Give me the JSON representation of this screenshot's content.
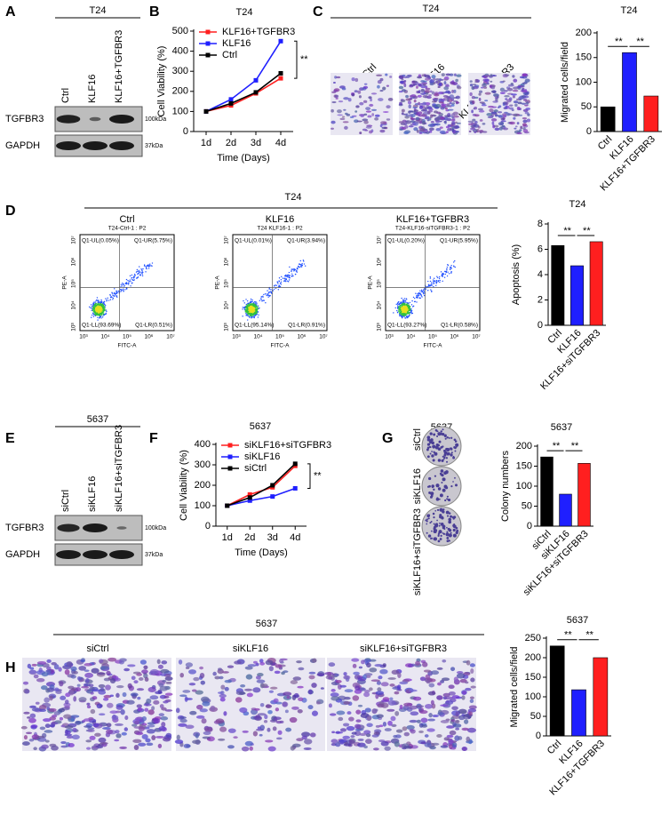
{
  "chart_data": [
    {
      "type": "line",
      "title": "T24",
      "categories": [
        "1d",
        "2d",
        "3d",
        "4d"
      ],
      "series": [
        {
          "name": "KLF16+TGFBR3",
          "color": "#ff1f1f",
          "values": [
            100,
            130,
            190,
            265
          ]
        },
        {
          "name": "KLF16",
          "color": "#1f1fff",
          "values": [
            100,
            160,
            255,
            450
          ]
        },
        {
          "name": "Ctrl",
          "color": "#000000",
          "values": [
            100,
            140,
            195,
            290
          ]
        }
      ],
      "ylim": [
        0,
        500
      ],
      "yticks": [
        0,
        100,
        200,
        300,
        400,
        500
      ],
      "y_label": "Cell Viability (%)",
      "x_label": "Time (Days)",
      "annotations": [
        "**"
      ]
    },
    {
      "type": "bar",
      "title": "T24",
      "categories": [
        "Ctrl",
        "KLF16",
        "KLF16+TGFBR3"
      ],
      "values": [
        50,
        160,
        72
      ],
      "colors": [
        "#000000",
        "#1f1fff",
        "#ff1f1f"
      ],
      "ylim": [
        0,
        200
      ],
      "yticks": [
        0,
        50,
        100,
        150,
        200
      ],
      "y_label": "Migrated cells/field",
      "annotations": [
        "**",
        "**"
      ]
    },
    {
      "type": "bar",
      "title": "T24",
      "categories": [
        "Ctrl",
        "KLF16",
        "KLF16+siTGFBR3"
      ],
      "values": [
        6.3,
        4.7,
        6.6
      ],
      "colors": [
        "#000000",
        "#1f1fff",
        "#ff1f1f"
      ],
      "ylim": [
        0,
        8
      ],
      "yticks": [
        0,
        2,
        4,
        6,
        8
      ],
      "y_label": "Apoptosis (%)",
      "annotations": [
        "**",
        "**"
      ]
    },
    {
      "type": "line",
      "title": "5637",
      "categories": [
        "1d",
        "2d",
        "3d",
        "4d"
      ],
      "series": [
        {
          "name": "siKLF16+siTGFBR3",
          "color": "#ff1f1f",
          "values": [
            100,
            155,
            190,
            295
          ]
        },
        {
          "name": "siKLF16",
          "color": "#1f1fff",
          "values": [
            100,
            125,
            145,
            185
          ]
        },
        {
          "name": "siCtrl",
          "color": "#000000",
          "values": [
            100,
            140,
            200,
            305
          ]
        }
      ],
      "ylim": [
        0,
        400
      ],
      "yticks": [
        0,
        100,
        200,
        300,
        400
      ],
      "y_label": "Cell Viability (%)",
      "x_label": "Time (Days)",
      "annotations": [
        "**"
      ]
    },
    {
      "type": "bar",
      "title": "5637",
      "categories": [
        "siCtrl",
        "siKLF16",
        "siKLF16+siTGFBR3"
      ],
      "values": [
        173,
        80,
        157
      ],
      "colors": [
        "#000000",
        "#1f1fff",
        "#ff1f1f"
      ],
      "ylim": [
        0,
        200
      ],
      "yticks": [
        0,
        50,
        100,
        150,
        200
      ],
      "y_label": "Colony numbers",
      "annotations": [
        "**",
        "**"
      ]
    },
    {
      "type": "bar",
      "title": "5637",
      "categories": [
        "Ctrl",
        "KLF16",
        "KLF16+TGFBR3"
      ],
      "values": [
        230,
        118,
        200
      ],
      "colors": [
        "#000000",
        "#1f1fff",
        "#ff1f1f"
      ],
      "ylim": [
        0,
        250
      ],
      "yticks": [
        0,
        50,
        100,
        150,
        200,
        250
      ],
      "y_label": "Migrated cells/field",
      "annotations": [
        "**",
        "**"
      ]
    }
  ],
  "figure": {
    "panel_labels": [
      "A",
      "B",
      "C",
      "D",
      "E",
      "F",
      "G",
      "H"
    ],
    "blot_A": {
      "cell_line": "T24",
      "lanes": [
        "Ctrl",
        "KLF16",
        "KLF16+TGFBR3"
      ],
      "rows": [
        "TGFBR3",
        "GAPDH"
      ],
      "sizes": [
        "100kDa",
        "37kDa"
      ]
    },
    "blot_E": {
      "cell_line": "5637",
      "lanes": [
        "siCtrl",
        "siKLF16",
        "siKLF16+siTGFBR3"
      ],
      "rows": [
        "TGFBR3",
        "GAPDH"
      ],
      "sizes": [
        "100kDa",
        "37kDa"
      ]
    },
    "migration_C": {
      "cell_line": "T24",
      "groups": [
        "Ctrl",
        "KLF16",
        "KLF16+TGFBR3"
      ]
    },
    "flow_D": {
      "cell_line": "T24",
      "y_label": "PE-A",
      "x_label": "FITC-A",
      "ticks": [
        "10³",
        "10⁴",
        "10⁵",
        "10⁶",
        "10⁷"
      ],
      "plots": [
        {
          "title": "Ctrl",
          "sample": "T24-Ctrl-1 : P2",
          "quadrants": [
            "Q1-UL(0.05%)",
            "Q1-UR(5.75%)",
            "Q1-LL(93.69%)",
            "Q1-LR(0.51%)"
          ]
        },
        {
          "title": "KLF16",
          "sample": "T24 KLF16-1 : P2",
          "quadrants": [
            "Q1-UL(0.01%)",
            "Q1-UR(3.94%)",
            "Q1-LL(95.14%)",
            "Q1-LR(0.91%)"
          ]
        },
        {
          "title": "KLF16+TGFBR3",
          "sample": "T24-KLF16-siTGFBR3-1 : P2",
          "quadrants": [
            "Q1-UL(0.20%)",
            "Q1-UR(5.95%)",
            "Q1-LL(93.27%)",
            "Q1-LR(0.58%)"
          ]
        }
      ]
    },
    "colony_G": {
      "cell_line": "5637",
      "groups": [
        "siCtrl",
        "siKLF16",
        "siKLF16+siTGFBR3"
      ]
    },
    "migration_H": {
      "cell_line": "5637",
      "groups": [
        "siCtrl",
        "siKLF16",
        "siKLF16+siTGFBR3"
      ]
    }
  }
}
